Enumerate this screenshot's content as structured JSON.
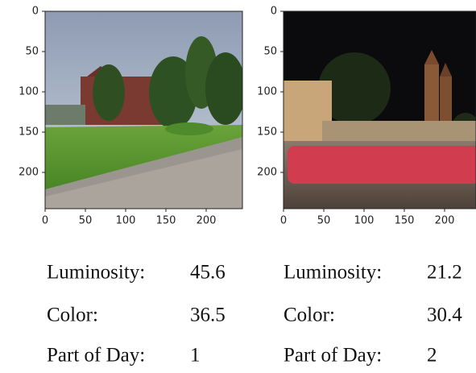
{
  "panels": [
    {
      "xlim": [
        0,
        245
      ],
      "ylim": [
        0,
        245
      ],
      "xticks": [
        0,
        50,
        100,
        150,
        200
      ],
      "yticks": [
        0,
        50,
        100,
        150,
        200
      ],
      "stats": [
        {
          "label": "Luminosity:",
          "value": "45.6"
        },
        {
          "label": "Color:",
          "value": "36.5"
        },
        {
          "label": "Part of Day:",
          "value": "1"
        }
      ]
    },
    {
      "xlim": [
        0,
        239
      ],
      "ylim": [
        0,
        245
      ],
      "xticks": [
        0,
        50,
        100,
        150,
        200
      ],
      "yticks": [
        0,
        50,
        100,
        150,
        200
      ],
      "stats": [
        {
          "label": "Luminosity:",
          "value": "21.2"
        },
        {
          "label": "Color:",
          "value": "30.4"
        },
        {
          "label": "Part of Day:",
          "value": "2"
        }
      ]
    }
  ]
}
